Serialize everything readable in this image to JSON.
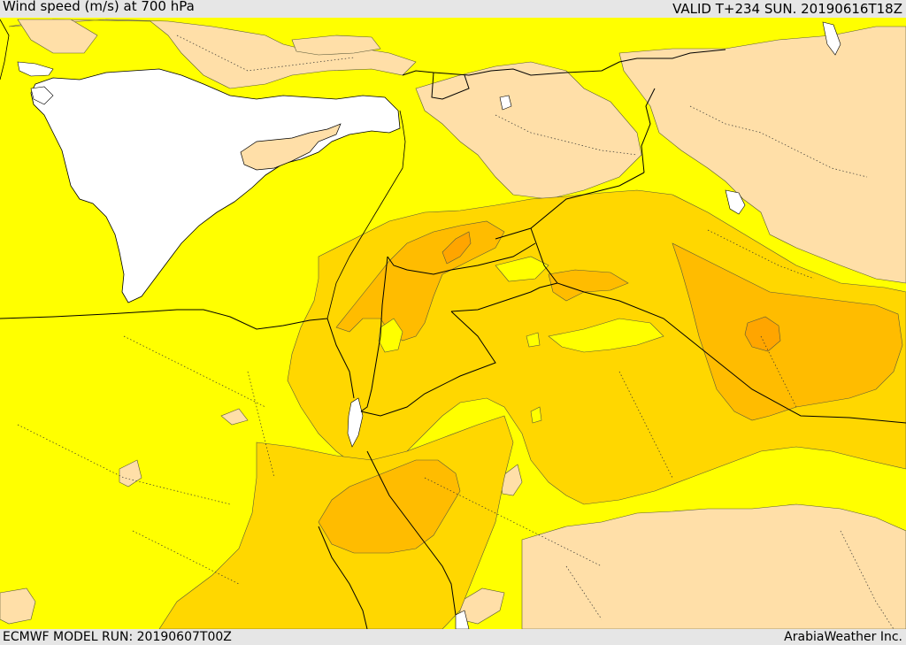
{
  "header": {
    "title": "Wind speed (m/s) at 700 hPa",
    "valid_time": "VALID T+234 SUN. 20190616T18Z"
  },
  "footer": {
    "model_run": "ECMWF MODEL RUN: 20190607T00Z",
    "credit": "ArabiaWeather Inc."
  },
  "colors": {
    "sea": "#ffffff",
    "band_0_5": "#ffdfa8",
    "band_5_10": "#ffff00",
    "band_10_15": "#ffd700",
    "band_15_20": "#ffbc00",
    "band_20_25": "#ffa500",
    "borders": "#000000"
  }
}
